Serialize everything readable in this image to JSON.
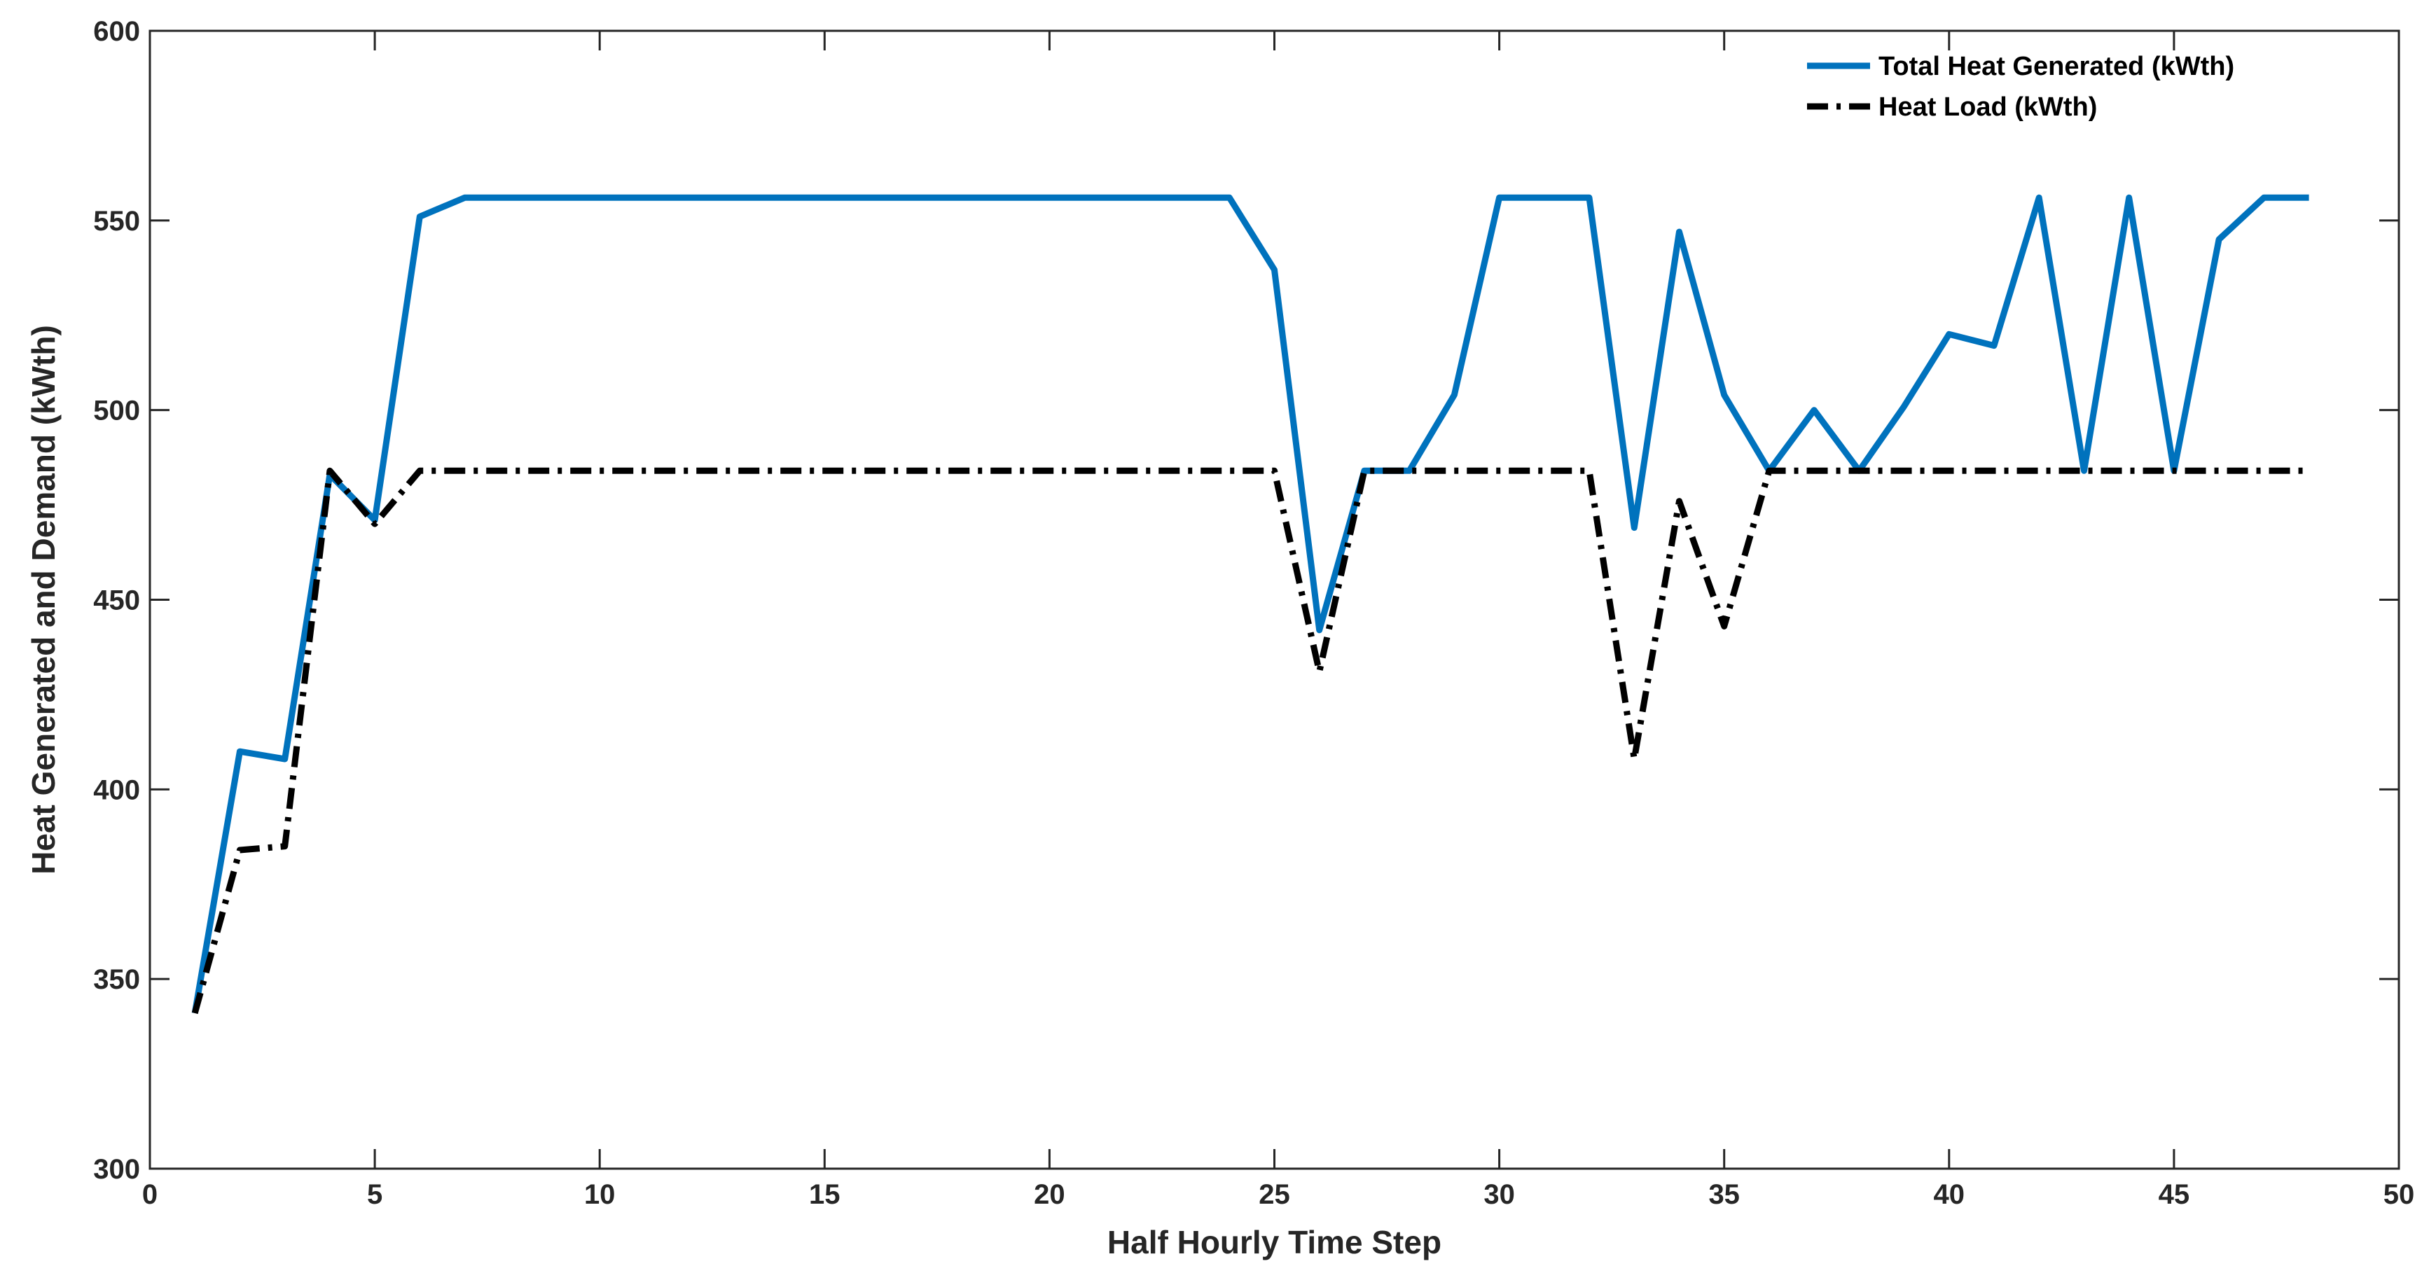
{
  "chart_data": {
    "type": "line",
    "title": "",
    "xlabel": "Half Hourly Time Step",
    "ylabel": "Heat Generated and Demand (kWth)",
    "xlim": [
      0,
      50
    ],
    "ylim": [
      300,
      600
    ],
    "xticks": [
      0,
      5,
      10,
      15,
      20,
      25,
      30,
      35,
      40,
      45,
      50
    ],
    "yticks": [
      300,
      350,
      400,
      450,
      500,
      550,
      600
    ],
    "grid": false,
    "legend_position": "top-right",
    "x": [
      1,
      2,
      3,
      4,
      5,
      6,
      7,
      8,
      9,
      10,
      11,
      12,
      13,
      14,
      15,
      16,
      17,
      18,
      19,
      20,
      21,
      22,
      23,
      24,
      25,
      26,
      27,
      28,
      29,
      30,
      31,
      32,
      33,
      34,
      35,
      36,
      37,
      38,
      39,
      40,
      41,
      42,
      43,
      44,
      45,
      46,
      47,
      48
    ],
    "series": [
      {
        "name": "Total Heat Generated (kWth)",
        "color": "#0072BD",
        "style": "solid",
        "values": [
          341,
          410,
          408,
          483,
          471,
          551,
          556,
          556,
          556,
          556,
          556,
          556,
          556,
          556,
          556,
          556,
          556,
          556,
          556,
          556,
          556,
          556,
          556,
          556,
          537,
          442,
          484,
          484,
          504,
          556,
          556,
          556,
          469,
          547,
          504,
          484,
          500,
          484,
          501,
          520,
          517,
          556,
          484,
          556,
          484,
          545,
          556,
          556
        ]
      },
      {
        "name": "Heat Load (kWth)",
        "color": "#000000",
        "style": "dashdot",
        "values": [
          341,
          384,
          385,
          484,
          470,
          484,
          484,
          484,
          484,
          484,
          484,
          484,
          484,
          484,
          484,
          484,
          484,
          484,
          484,
          484,
          484,
          484,
          484,
          484,
          484,
          431,
          484,
          484,
          484,
          484,
          484,
          484,
          408,
          476,
          443,
          484,
          484,
          484,
          484,
          484,
          484,
          484,
          484,
          484,
          484,
          484,
          484,
          484
        ]
      }
    ]
  }
}
